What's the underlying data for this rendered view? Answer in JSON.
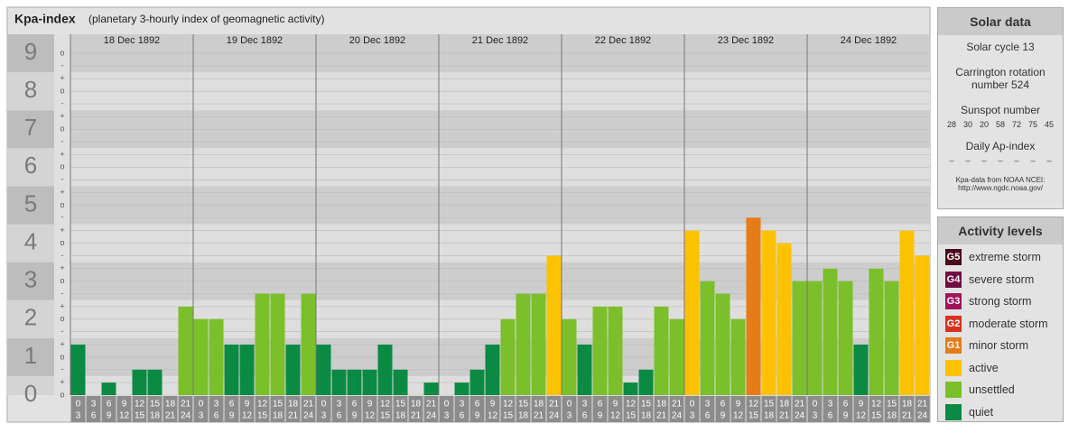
{
  "chart_data": {
    "type": "bar",
    "title": "Kpa-index",
    "subtitle": "(planetary 3-hourly index of geomagnetic activity)",
    "days": [
      "18 Dec 1892",
      "19 Dec 1892",
      "20 Dec 1892",
      "21 Dec 1892",
      "22 Dec 1892",
      "23 Dec 1892",
      "24 Dec 1892"
    ],
    "hours": [
      [
        "0",
        "3"
      ],
      [
        "3",
        "6"
      ],
      [
        "6",
        "9"
      ],
      [
        "9",
        "12"
      ],
      [
        "12",
        "15"
      ],
      [
        "15",
        "18"
      ],
      [
        "18",
        "21"
      ],
      [
        "21",
        "24"
      ]
    ],
    "values": [
      1.33,
      0,
      0.33,
      0,
      0.67,
      0.67,
      0,
      2.33,
      2,
      2,
      1.33,
      1.33,
      2.67,
      2.67,
      1.33,
      2.67,
      1.33,
      0.67,
      0.67,
      0.67,
      1.33,
      0.67,
      0,
      0.33,
      0,
      0.33,
      0.67,
      1.33,
      2,
      2.67,
      2.67,
      3.67,
      2,
      1.33,
      2.33,
      2.33,
      0.33,
      0.67,
      2.33,
      2,
      4.33,
      3,
      2.67,
      2,
      4.67,
      4.33,
      4,
      3,
      3,
      3.33,
      3,
      1.33,
      3.33,
      3,
      4.33,
      3.67
    ],
    "colors": [
      "#0b8a44",
      "#0b8a44",
      "#0b8a44",
      "#0b8a44",
      "#0b8a44",
      "#0b8a44",
      "#0b8a44",
      "#7bbf2a",
      "#7bbf2a",
      "#7bbf2a",
      "#0b8a44",
      "#0b8a44",
      "#7bbf2a",
      "#7bbf2a",
      "#0b8a44",
      "#7bbf2a",
      "#0b8a44",
      "#0b8a44",
      "#0b8a44",
      "#0b8a44",
      "#0b8a44",
      "#0b8a44",
      "#0b8a44",
      "#0b8a44",
      "#0b8a44",
      "#0b8a44",
      "#0b8a44",
      "#0b8a44",
      "#7bbf2a",
      "#7bbf2a",
      "#7bbf2a",
      "#fcc200",
      "#7bbf2a",
      "#0b8a44",
      "#7bbf2a",
      "#7bbf2a",
      "#0b8a44",
      "#0b8a44",
      "#7bbf2a",
      "#7bbf2a",
      "#fcc200",
      "#7bbf2a",
      "#7bbf2a",
      "#7bbf2a",
      "#e67c17",
      "#fcc200",
      "#fcc200",
      "#7bbf2a",
      "#7bbf2a",
      "#7bbf2a",
      "#7bbf2a",
      "#0b8a44",
      "#7bbf2a",
      "#7bbf2a",
      "#fcc200",
      "#fcc200"
    ],
    "ylim": [
      0,
      9.5
    ],
    "yticks": [
      0,
      1,
      2,
      3,
      4,
      5,
      6,
      7,
      8,
      9
    ],
    "minor_ticks": [
      {
        "value": 0,
        "label": "o"
      },
      {
        "value": 0.33,
        "label": "+"
      },
      {
        "value": 0.67,
        "label": "-"
      },
      {
        "value": 1,
        "label": "o"
      },
      {
        "value": 1.33,
        "label": "+"
      },
      {
        "value": 1.67,
        "label": "-"
      },
      {
        "value": 2,
        "label": "o"
      },
      {
        "value": 2.33,
        "label": "+"
      },
      {
        "value": 2.67,
        "label": "-"
      },
      {
        "value": 3,
        "label": "o"
      },
      {
        "value": 3.33,
        "label": "+"
      },
      {
        "value": 3.67,
        "label": "-"
      },
      {
        "value": 4,
        "label": "o"
      },
      {
        "value": 4.33,
        "label": "+"
      },
      {
        "value": 4.67,
        "label": "-"
      },
      {
        "value": 5,
        "label": "o"
      },
      {
        "value": 5.33,
        "label": "+"
      },
      {
        "value": 5.67,
        "label": "-"
      },
      {
        "value": 6,
        "label": "o"
      },
      {
        "value": 6.33,
        "label": "+"
      },
      {
        "value": 6.67,
        "label": "-"
      },
      {
        "value": 7,
        "label": "o"
      },
      {
        "value": 7.33,
        "label": "+"
      },
      {
        "value": 7.67,
        "label": "-"
      },
      {
        "value": 8,
        "label": "o"
      },
      {
        "value": 8.33,
        "label": "+"
      },
      {
        "value": 8.67,
        "label": "-"
      },
      {
        "value": 9,
        "label": "o"
      }
    ],
    "band_colors": [
      "#cdcdcd",
      "#dedede"
    ],
    "grid": true
  },
  "solar": {
    "title": "Solar data",
    "cycle": "Solar cycle 13",
    "rotation": [
      "Carrington rotation",
      "number 524"
    ],
    "sunspot_title": "Sunspot number",
    "sunspots": [
      "28",
      "30",
      "20",
      "58",
      "72",
      "75",
      "45"
    ],
    "ap_title": "Daily Ap-index",
    "ap": [
      "–",
      "–",
      "–",
      "–",
      "–",
      "–",
      "–"
    ],
    "source": [
      "Kpa-data from NOAA NCEI:",
      "http://www.ngdc.noaa.gov/"
    ]
  },
  "activity": {
    "title": "Activity levels",
    "levels": [
      {
        "badge": "G5",
        "label": "extreme storm",
        "color": "#4a0a1e"
      },
      {
        "badge": "G4",
        "label": "severe storm",
        "color": "#720c40"
      },
      {
        "badge": "G3",
        "label": "strong storm",
        "color": "#a3145a"
      },
      {
        "badge": "G2",
        "label": "moderate storm",
        "color": "#d8321e"
      },
      {
        "badge": "G1",
        "label": "minor storm",
        "color": "#e67c17"
      },
      {
        "label": "active",
        "color": "#fcc200"
      },
      {
        "label": "unsettled",
        "color": "#7bbf2a"
      },
      {
        "label": "quiet",
        "color": "#0b8a44"
      }
    ]
  }
}
